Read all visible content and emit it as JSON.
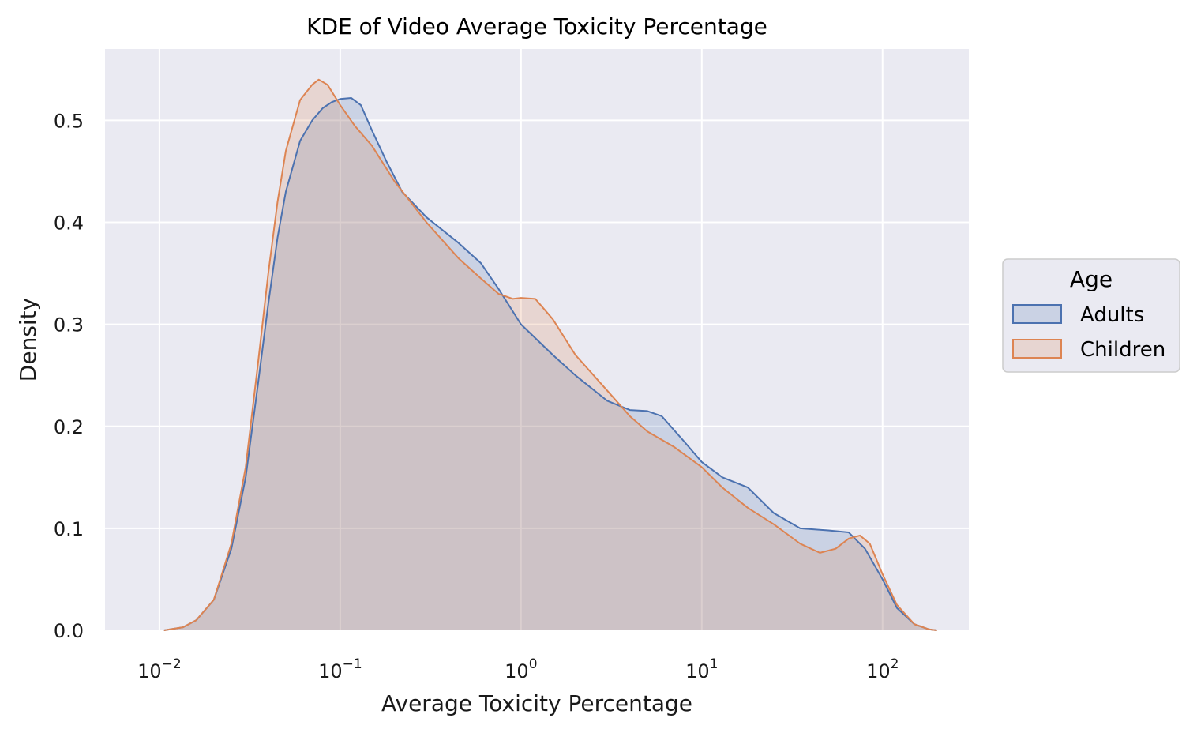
{
  "chart_data": {
    "type": "area",
    "title": "KDE of Video Average Toxicity Percentage",
    "xlabel": "Average Toxicity Percentage",
    "ylabel": "Density",
    "x_scale": "log",
    "xlim": [
      0.005,
      300
    ],
    "ylim": [
      0,
      0.57
    ],
    "x_ticks": [
      {
        "value": 0.01,
        "base": "10",
        "exp": "−2"
      },
      {
        "value": 0.1,
        "base": "10",
        "exp": "−1"
      },
      {
        "value": 1,
        "base": "10",
        "exp": "0"
      },
      {
        "value": 10,
        "base": "10",
        "exp": "1"
      },
      {
        "value": 100,
        "base": "10",
        "exp": "2"
      }
    ],
    "y_ticks": [
      "0.0",
      "0.1",
      "0.2",
      "0.3",
      "0.4",
      "0.5"
    ],
    "y_tick_values": [
      0,
      0.1,
      0.2,
      0.3,
      0.4,
      0.5
    ],
    "grid": true,
    "legend": {
      "title": "Age",
      "position": "right"
    },
    "series": [
      {
        "name": "Adults",
        "color": "#4c72b0",
        "points": [
          [
            0.0106,
            0.0
          ],
          [
            0.0135,
            0.003
          ],
          [
            0.016,
            0.01
          ],
          [
            0.02,
            0.03
          ],
          [
            0.025,
            0.08
          ],
          [
            0.03,
            0.15
          ],
          [
            0.035,
            0.24
          ],
          [
            0.04,
            0.32
          ],
          [
            0.045,
            0.385
          ],
          [
            0.05,
            0.43
          ],
          [
            0.06,
            0.48
          ],
          [
            0.07,
            0.5
          ],
          [
            0.08,
            0.512
          ],
          [
            0.09,
            0.518
          ],
          [
            0.1,
            0.521
          ],
          [
            0.115,
            0.522
          ],
          [
            0.13,
            0.515
          ],
          [
            0.15,
            0.49
          ],
          [
            0.18,
            0.46
          ],
          [
            0.22,
            0.43
          ],
          [
            0.3,
            0.405
          ],
          [
            0.45,
            0.38
          ],
          [
            0.6,
            0.36
          ],
          [
            0.75,
            0.335
          ],
          [
            1.0,
            0.3
          ],
          [
            1.5,
            0.27
          ],
          [
            2.0,
            0.25
          ],
          [
            3.0,
            0.225
          ],
          [
            4.0,
            0.216
          ],
          [
            5.0,
            0.215
          ],
          [
            6.0,
            0.21
          ],
          [
            8.0,
            0.185
          ],
          [
            10.0,
            0.165
          ],
          [
            13.0,
            0.15
          ],
          [
            18.0,
            0.14
          ],
          [
            25.0,
            0.115
          ],
          [
            35.0,
            0.1
          ],
          [
            50.0,
            0.098
          ],
          [
            65.0,
            0.096
          ],
          [
            80.0,
            0.08
          ],
          [
            100.0,
            0.05
          ],
          [
            120.0,
            0.022
          ],
          [
            150.0,
            0.006
          ],
          [
            180.0,
            0.001
          ],
          [
            200.0,
            0.0
          ]
        ]
      },
      {
        "name": "Children",
        "color": "#dd8452",
        "points": [
          [
            0.0106,
            0.0
          ],
          [
            0.0135,
            0.003
          ],
          [
            0.016,
            0.01
          ],
          [
            0.02,
            0.03
          ],
          [
            0.025,
            0.085
          ],
          [
            0.03,
            0.16
          ],
          [
            0.035,
            0.26
          ],
          [
            0.04,
            0.35
          ],
          [
            0.045,
            0.42
          ],
          [
            0.05,
            0.47
          ],
          [
            0.06,
            0.52
          ],
          [
            0.07,
            0.535
          ],
          [
            0.076,
            0.54
          ],
          [
            0.085,
            0.535
          ],
          [
            0.1,
            0.515
          ],
          [
            0.12,
            0.495
          ],
          [
            0.15,
            0.475
          ],
          [
            0.2,
            0.44
          ],
          [
            0.3,
            0.4
          ],
          [
            0.45,
            0.365
          ],
          [
            0.6,
            0.345
          ],
          [
            0.75,
            0.33
          ],
          [
            0.9,
            0.325
          ],
          [
            1.0,
            0.326
          ],
          [
            1.2,
            0.325
          ],
          [
            1.5,
            0.305
          ],
          [
            2.0,
            0.27
          ],
          [
            3.0,
            0.235
          ],
          [
            4.0,
            0.21
          ],
          [
            5.0,
            0.195
          ],
          [
            7.0,
            0.18
          ],
          [
            10.0,
            0.16
          ],
          [
            13.0,
            0.14
          ],
          [
            18.0,
            0.12
          ],
          [
            25.0,
            0.104
          ],
          [
            35.0,
            0.085
          ],
          [
            45.0,
            0.076
          ],
          [
            55.0,
            0.08
          ],
          [
            65.0,
            0.09
          ],
          [
            75.0,
            0.093
          ],
          [
            85.0,
            0.085
          ],
          [
            100.0,
            0.055
          ],
          [
            120.0,
            0.025
          ],
          [
            150.0,
            0.006
          ],
          [
            180.0,
            0.001
          ],
          [
            200.0,
            0.0
          ]
        ]
      }
    ]
  }
}
